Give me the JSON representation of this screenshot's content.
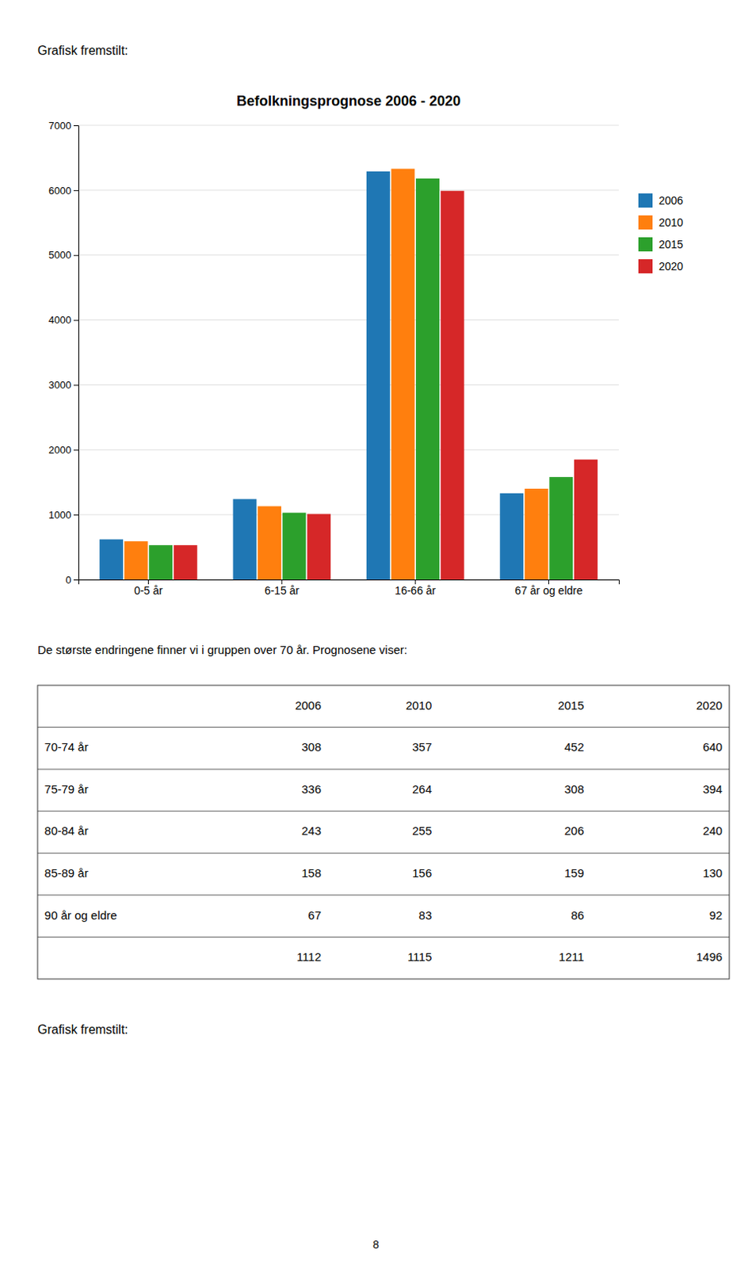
{
  "chart_data": {
    "type": "bar",
    "title": "Befolkningsprognose 2006 - 2020",
    "categories": [
      "0-5 år",
      "6-15 år",
      "16-66 år",
      "67 år og eldre"
    ],
    "series": [
      {
        "name": "2006",
        "values": [
          620,
          1240,
          6290,
          1330
        ]
      },
      {
        "name": "2010",
        "values": [
          590,
          1130,
          6330,
          1400
        ]
      },
      {
        "name": "2015",
        "values": [
          530,
          1030,
          6180,
          1580
        ]
      },
      {
        "name": "2020",
        "values": [
          530,
          1010,
          5990,
          1850
        ]
      }
    ],
    "ylim": [
      0,
      7000
    ],
    "yticks": [
      0,
      1000,
      2000,
      3000,
      4000,
      5000,
      6000,
      7000
    ],
    "grid": true,
    "legend": "right"
  },
  "header_text": "Grafisk fremstilt:",
  "middle_text": "De største endringene finner vi i gruppen over 70 år. Prognosene viser:",
  "table": {
    "headers": [
      null,
      "2006",
      "2010",
      "2015",
      "2020"
    ],
    "rows": [
      [
        "70-74 år",
        "308",
        "357",
        "452",
        "640"
      ],
      [
        "75-79 år",
        "336",
        "264",
        "308",
        "394"
      ],
      [
        "80-84 år",
        "243",
        "255",
        "206",
        "240"
      ],
      [
        "85-89 år",
        "158",
        "156",
        "159",
        "130"
      ],
      [
        "90 år og eldre",
        "67",
        "83",
        "86",
        "92"
      ],
      [
        null,
        "1112",
        "1115",
        "1211",
        "1496"
      ]
    ]
  },
  "footer_text": "Grafisk fremstilt:",
  "page_number": "8"
}
